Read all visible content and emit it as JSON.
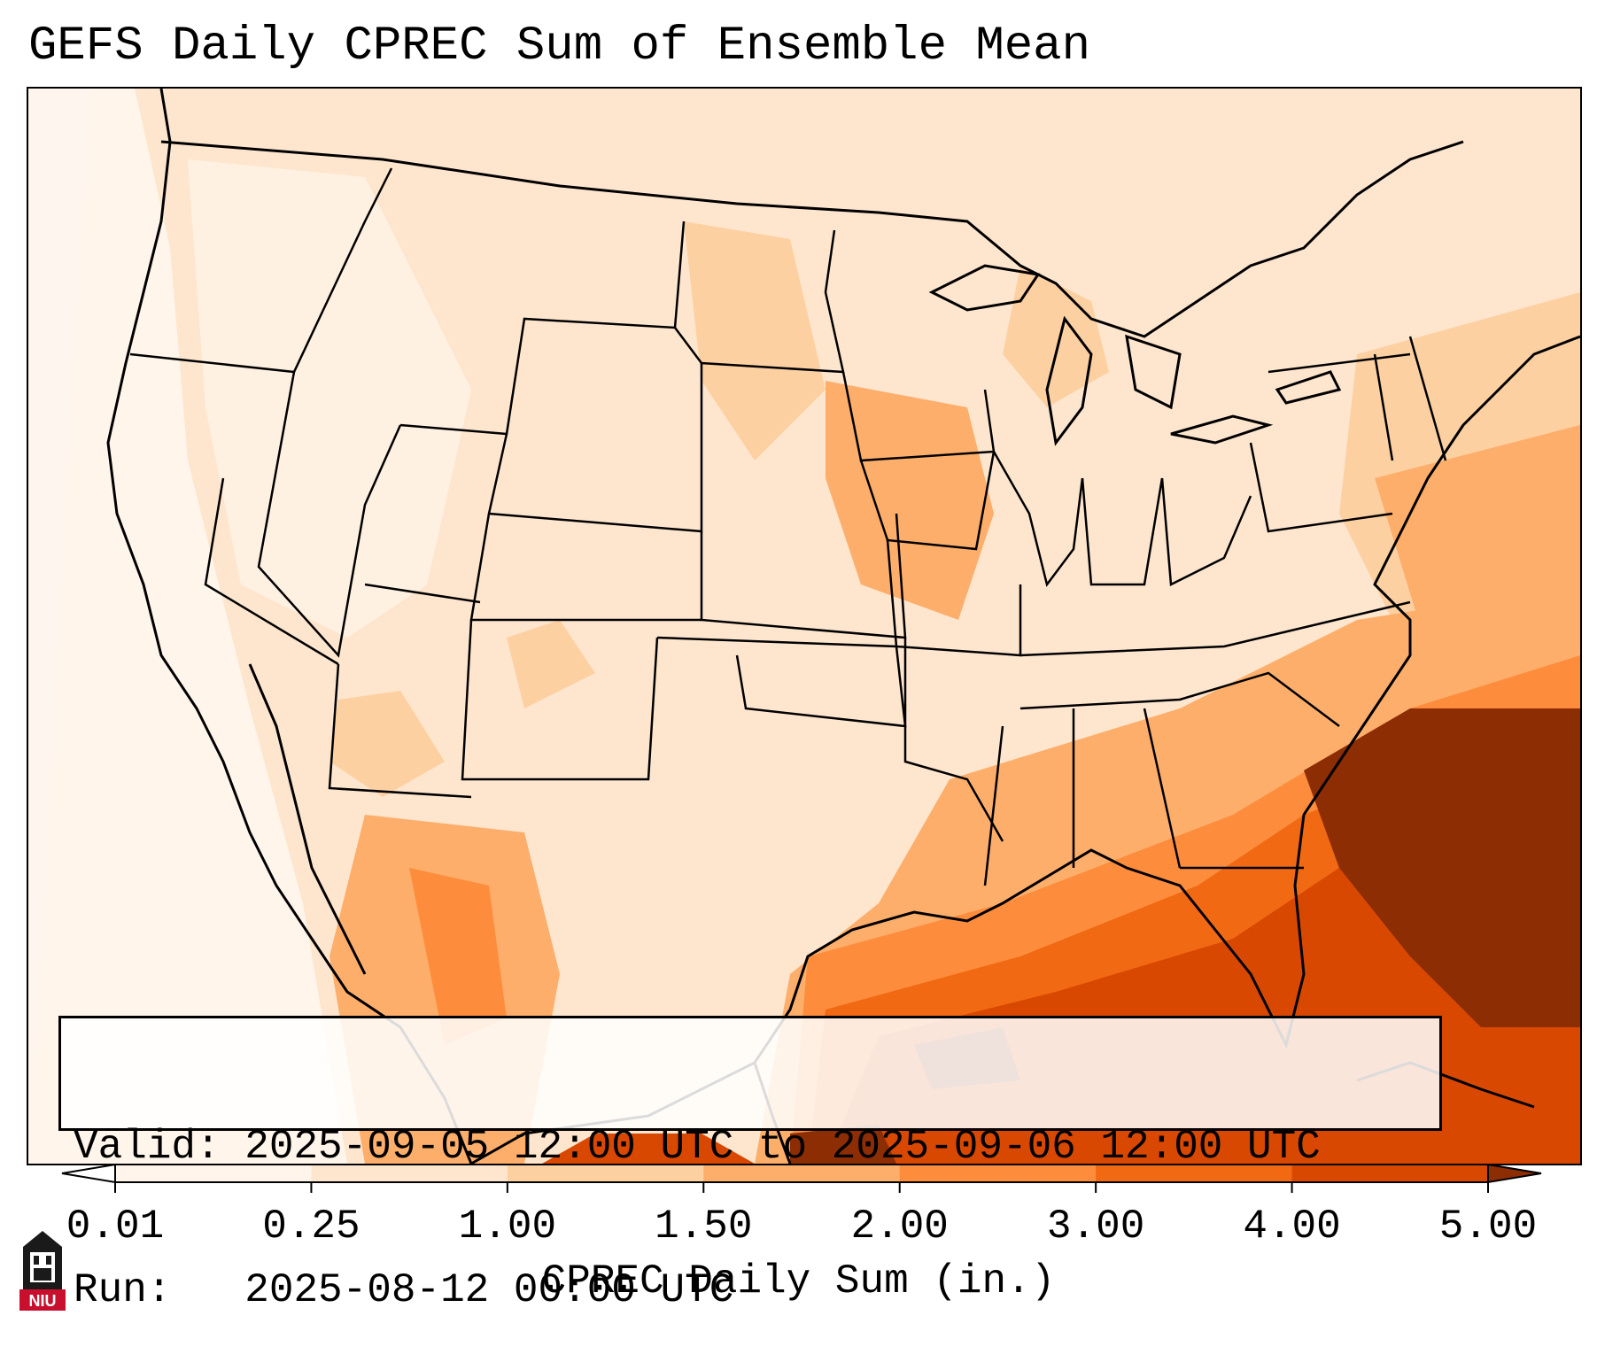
{
  "title": "GEFS Daily CPREC Sum of Ensemble Mean",
  "info": {
    "valid_line": "Valid: 2025-09-05 12:00 UTC to 2025-09-06 12:00 UTC",
    "run_line": "Run:   2025-08-12 00:00 UTC"
  },
  "colorbar": {
    "label": "CPREC Daily Sum (in.)",
    "ticks": [
      "0.01",
      "0.25",
      "1.00",
      "1.50",
      "2.00",
      "3.00",
      "4.00",
      "5.00"
    ],
    "colors": [
      "#fff5eb",
      "#fee6ce",
      "#fdd0a2",
      "#fdae6b",
      "#fd8d3c",
      "#f16913",
      "#d94801",
      "#8c2d04"
    ],
    "extend": "both"
  },
  "logo": {
    "text": "NIU",
    "colors": {
      "dark": "#1a1a1a",
      "red": "#c8102e",
      "white": "#ffffff"
    }
  },
  "map": {
    "projection": "lambert-conformal-conus",
    "background_color": "#fef0e3",
    "boundary_color": "#000000"
  }
}
